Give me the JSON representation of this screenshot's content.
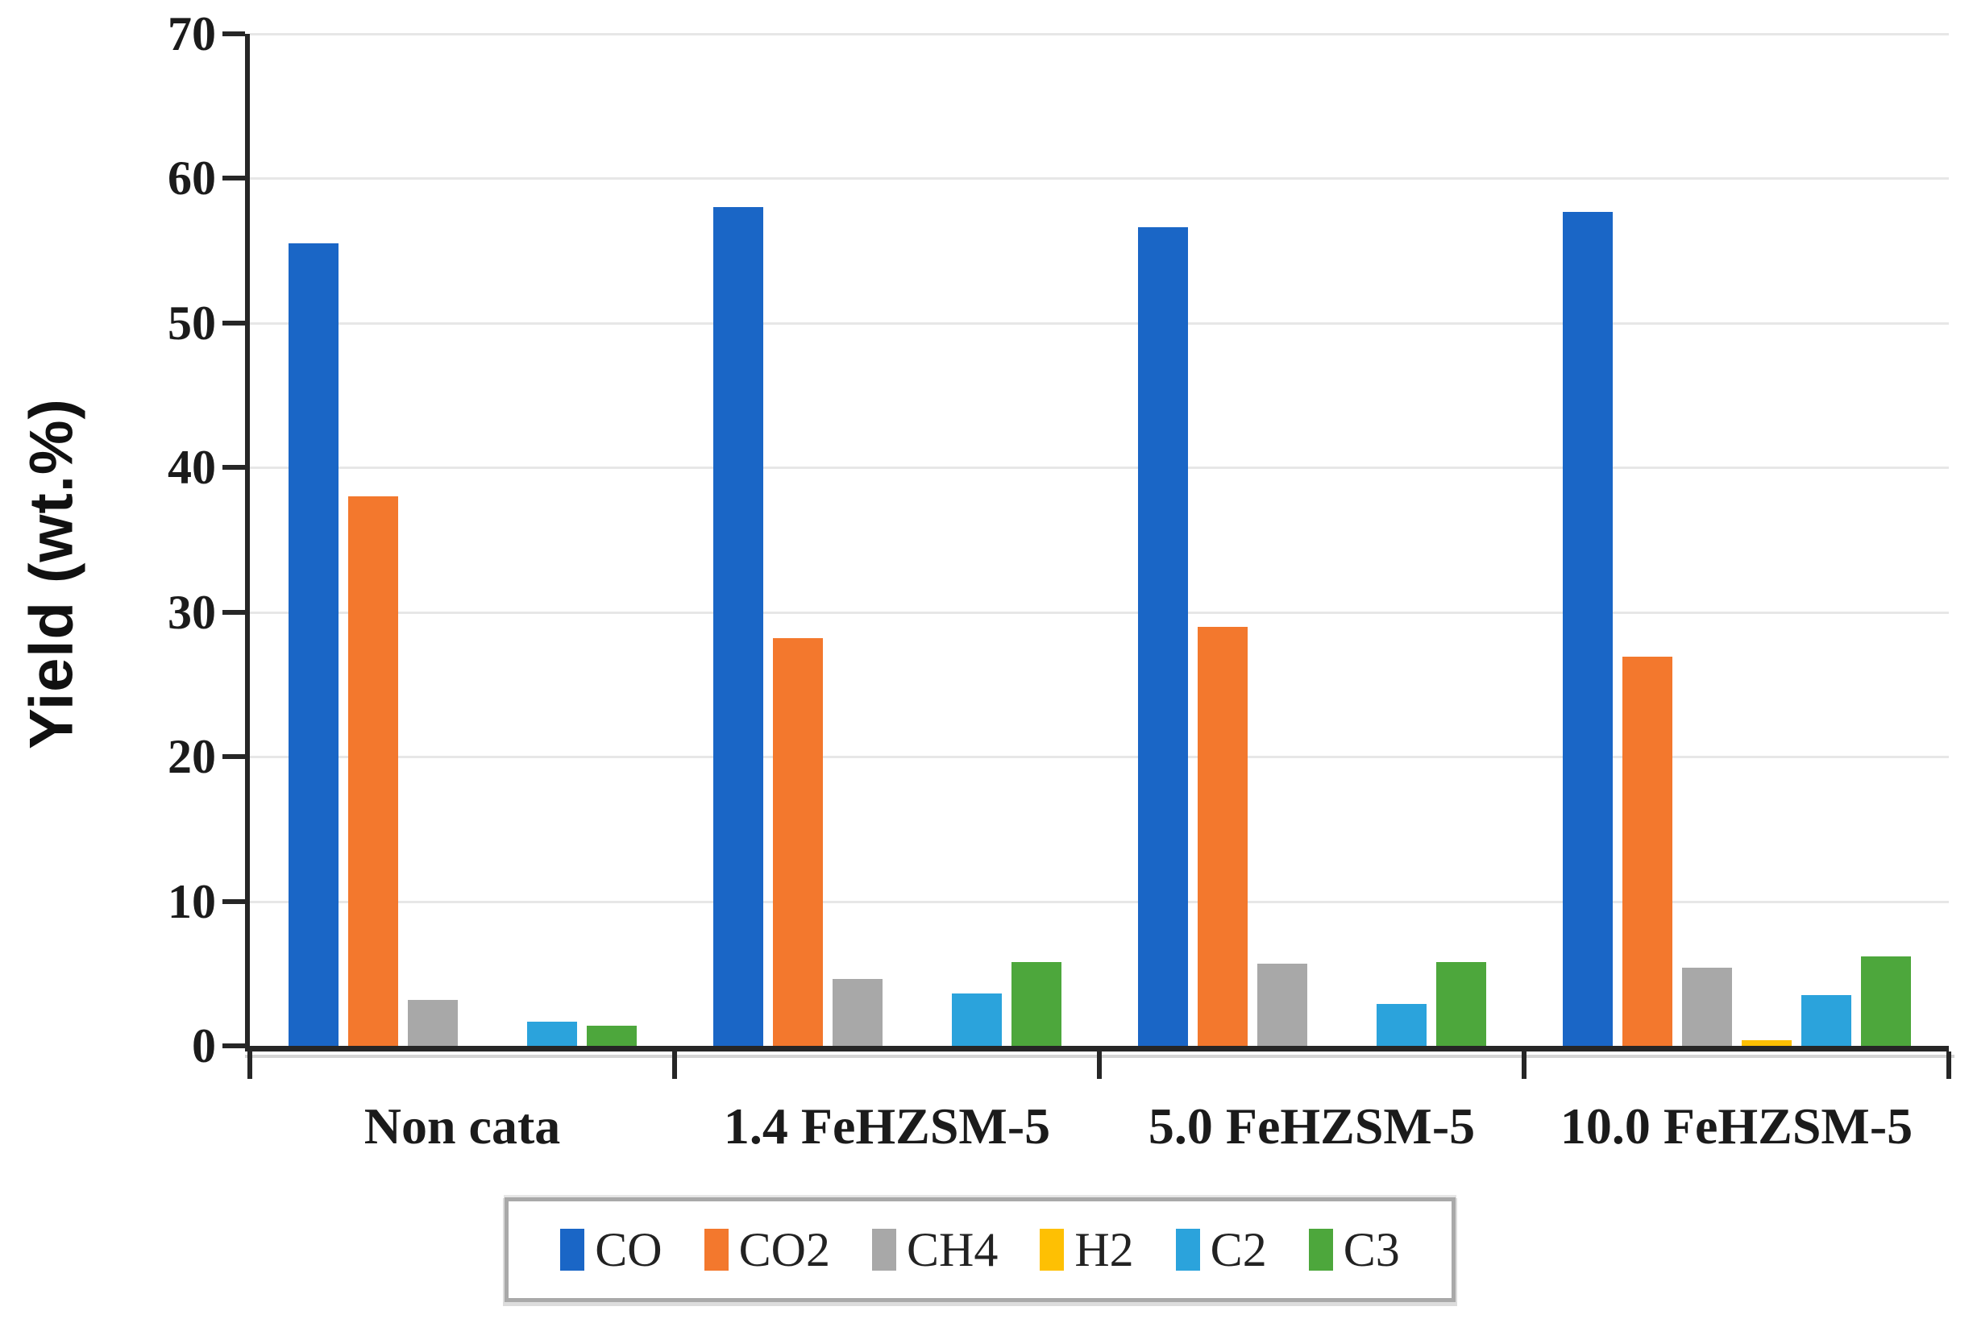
{
  "chart_data": {
    "type": "bar",
    "title": "",
    "xlabel": "",
    "ylabel": "Yield (wt.%)",
    "ylim": [
      0,
      70
    ],
    "yticks": [
      0,
      10,
      20,
      30,
      40,
      50,
      60,
      70
    ],
    "grid": "horizontal-light-gray",
    "legend_position": "bottom",
    "axis_color": "#262626",
    "gridline_color": "#e7e7e7",
    "categories": [
      "Non cata",
      "1.4 FeHZSM-5",
      "5.0 FeHZSM-5",
      "10.0 FeHZSM-5"
    ],
    "series": [
      {
        "name": "CO",
        "color": "#1a66c6",
        "values": [
          55.5,
          58.0,
          56.6,
          57.7
        ]
      },
      {
        "name": "CO2",
        "color": "#f3782d",
        "values": [
          38.0,
          28.2,
          29.0,
          26.9
        ]
      },
      {
        "name": "CH4",
        "color": "#a8a8a8",
        "values": [
          3.2,
          4.6,
          5.7,
          5.4
        ]
      },
      {
        "name": "H2",
        "color": "#fec003",
        "values": [
          0.0,
          0.0,
          0.0,
          0.4
        ]
      },
      {
        "name": "C2",
        "color": "#2ba3dc",
        "values": [
          1.7,
          3.6,
          2.9,
          3.5
        ]
      },
      {
        "name": "C3",
        "color": "#4da73c",
        "values": [
          1.4,
          5.8,
          5.8,
          6.2
        ]
      }
    ]
  }
}
